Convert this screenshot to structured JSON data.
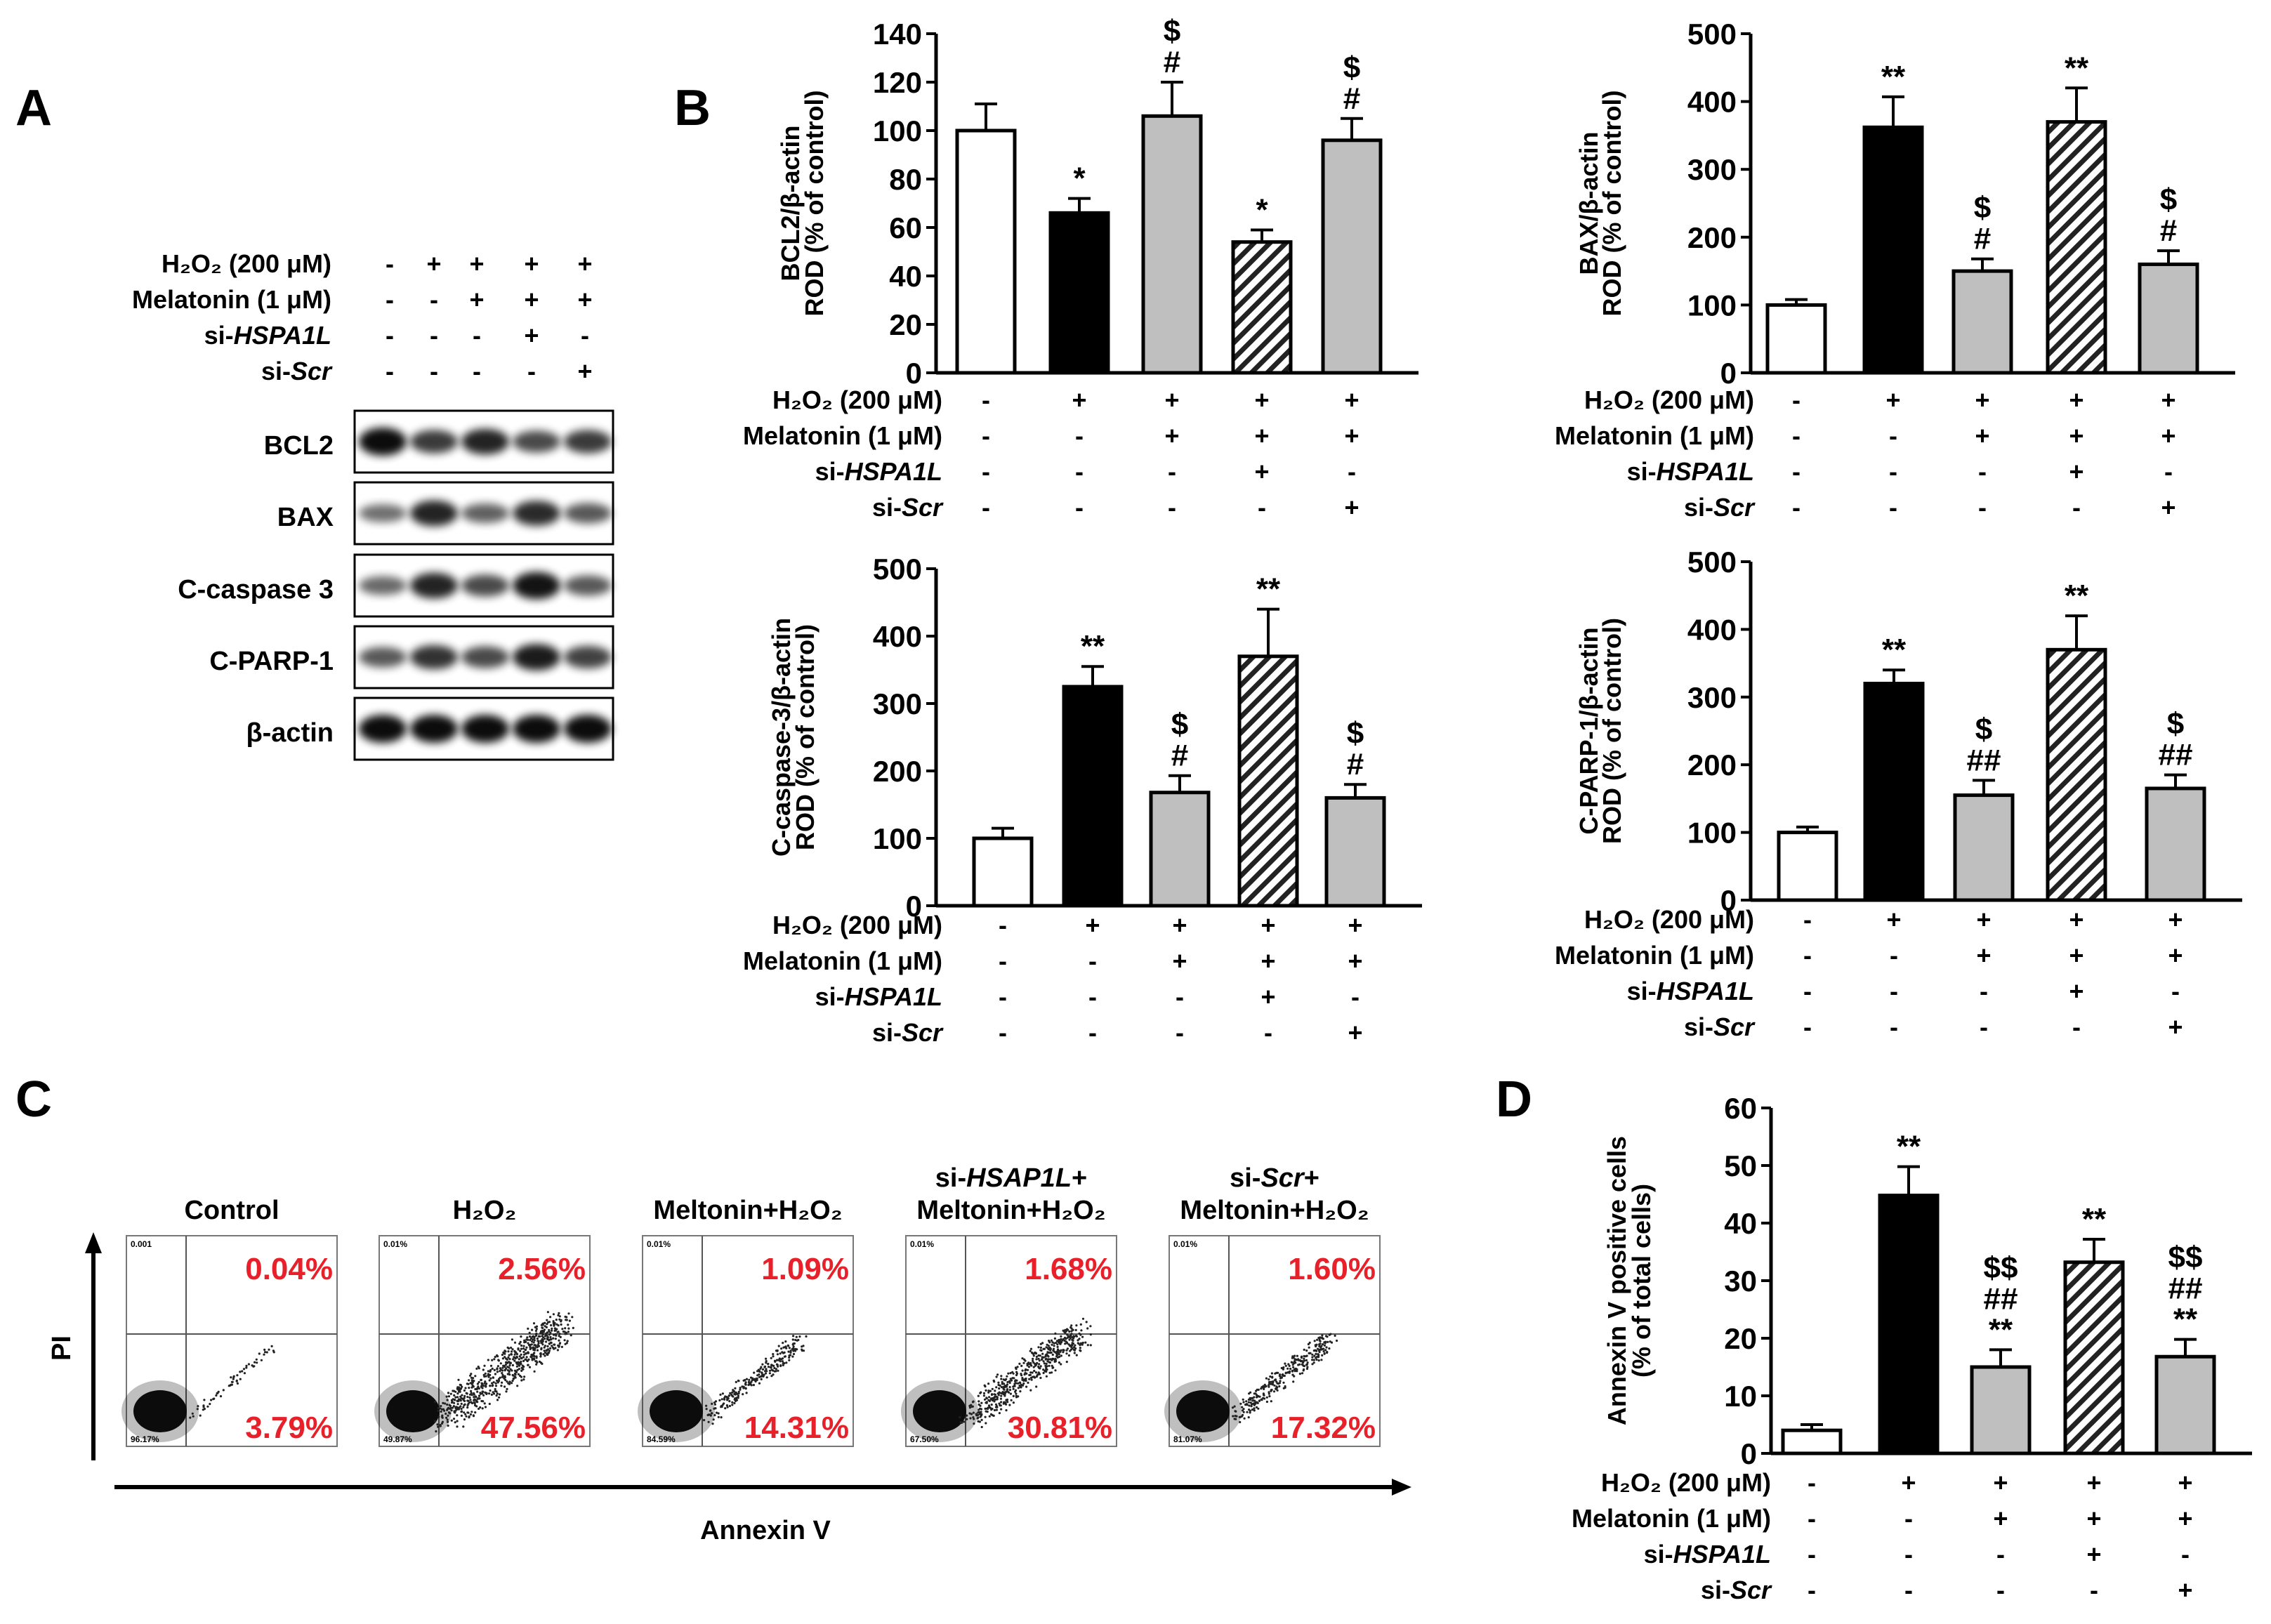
{
  "colors": {
    "black_bar": "#000000",
    "gray_bar": "#bfbfbf",
    "white_bar": "#ffffff",
    "percent_red": "#e8202a"
  },
  "panel_labels": {
    "a": "A",
    "b": "B",
    "c": "C",
    "d": "D"
  },
  "conditions": {
    "rows": [
      {
        "label_main": "H₂O₂ (200 μM)",
        "label_italic": "",
        "marks": [
          "-",
          "+",
          "+",
          "+",
          "+"
        ]
      },
      {
        "label_main": "Melatonin (1 μM)",
        "label_italic": "",
        "marks": [
          "-",
          "-",
          "+",
          "+",
          "+"
        ]
      },
      {
        "label_main": "si-",
        "label_italic": "HSPA1L",
        "marks": [
          "-",
          "-",
          "-",
          "+",
          "-"
        ]
      },
      {
        "label_main": "si-",
        "label_italic": "Scr",
        "marks": [
          "-",
          "-",
          "-",
          "-",
          "+"
        ]
      }
    ]
  },
  "western_blot": {
    "bands": [
      "BCL2",
      "BAX",
      "C-caspase 3",
      "C-PARP-1",
      "β-actin"
    ]
  },
  "chart_data": [
    {
      "id": "bcl2",
      "type": "bar",
      "title": "",
      "xlabel": "",
      "ylabel_lines": [
        "BCL2/β-actin",
        "ROD (% of control)"
      ],
      "ylim": [
        0,
        140
      ],
      "yticks": [
        0,
        20,
        40,
        60,
        80,
        100,
        120,
        140
      ],
      "values": [
        100,
        66,
        106,
        54,
        96
      ],
      "errors": [
        11,
        6,
        14,
        5,
        9
      ],
      "fills": [
        "white",
        "black",
        "gray",
        "hatch",
        "gray"
      ],
      "annotations": [
        [],
        [
          "*"
        ],
        [
          "#",
          "$"
        ],
        [
          "*"
        ],
        [
          "#",
          "$"
        ]
      ]
    },
    {
      "id": "bax",
      "type": "bar",
      "title": "",
      "xlabel": "",
      "ylabel_lines": [
        "BAX/β-actin",
        "ROD (% of control)"
      ],
      "ylim": [
        0,
        500
      ],
      "yticks": [
        0,
        100,
        200,
        300,
        400,
        500
      ],
      "values": [
        100,
        362,
        150,
        370,
        160
      ],
      "errors": [
        8,
        45,
        18,
        50,
        20
      ],
      "fills": [
        "white",
        "black",
        "gray",
        "hatch",
        "gray"
      ],
      "annotations": [
        [],
        [
          "**"
        ],
        [
          "#",
          "$"
        ],
        [
          "**"
        ],
        [
          "#",
          "$"
        ]
      ]
    },
    {
      "id": "ccasp3",
      "type": "bar",
      "title": "",
      "xlabel": "",
      "ylabel_lines": [
        "C-caspase-3/β-actin",
        "ROD (% of control)"
      ],
      "ylim": [
        0,
        500
      ],
      "yticks": [
        0,
        100,
        200,
        300,
        400,
        500
      ],
      "values": [
        100,
        325,
        168,
        370,
        160
      ],
      "errors": [
        15,
        30,
        25,
        70,
        20
      ],
      "fills": [
        "white",
        "black",
        "gray",
        "hatch",
        "gray"
      ],
      "annotations": [
        [],
        [
          "**"
        ],
        [
          "#",
          "$"
        ],
        [
          "**"
        ],
        [
          "#",
          "$"
        ]
      ]
    },
    {
      "id": "cparp1",
      "type": "bar",
      "title": "",
      "xlabel": "",
      "ylabel_lines": [
        "C-PARP-1/β-actin",
        "ROD (% of control)"
      ],
      "ylim": [
        0,
        500
      ],
      "yticks": [
        0,
        100,
        200,
        300,
        400,
        500
      ],
      "values": [
        100,
        320,
        155,
        370,
        165
      ],
      "errors": [
        8,
        20,
        22,
        50,
        20
      ],
      "fills": [
        "white",
        "black",
        "gray",
        "hatch",
        "gray"
      ],
      "annotations": [
        [],
        [
          "**"
        ],
        [
          "##",
          "$"
        ],
        [
          "**"
        ],
        [
          "##",
          "$"
        ]
      ]
    },
    {
      "id": "annexin",
      "type": "bar",
      "title": "",
      "xlabel": "",
      "ylabel_lines": [
        "Annexin V positive cells",
        "(% of total cells)"
      ],
      "ylim": [
        0,
        60
      ],
      "yticks": [
        0,
        10,
        20,
        30,
        40,
        50,
        60
      ],
      "values": [
        4,
        44.8,
        15,
        33.2,
        16.8
      ],
      "errors": [
        1,
        5,
        3,
        4,
        3
      ],
      "fills": [
        "white",
        "black",
        "gray",
        "hatch",
        "gray"
      ],
      "annotations": [
        [],
        [
          "**"
        ],
        [
          "**",
          "##",
          "$$"
        ],
        [
          "**"
        ],
        [
          "**",
          "##",
          "$$"
        ]
      ]
    }
  ],
  "flow": {
    "y_axis": "PI",
    "x_axis": "Annexin V",
    "panels": [
      {
        "title_main": "Control",
        "title_italic": "",
        "title_tail": "",
        "title_l2": "",
        "ur": "0.04%",
        "lr": "3.79%",
        "ul_corner": "0.001",
        "ll_corner": "96.17%"
      },
      {
        "title_main": "H₂O₂",
        "title_italic": "",
        "title_tail": "",
        "title_l2": "",
        "ur": "2.56%",
        "lr": "47.56%",
        "ul_corner": "0.01%",
        "ll_corner": "49.87%"
      },
      {
        "title_main": "Meltonin+H₂O₂",
        "title_italic": "",
        "title_tail": "",
        "title_l2": "",
        "ur": "1.09%",
        "lr": "14.31%",
        "ul_corner": "0.01%",
        "ll_corner": "84.59%"
      },
      {
        "title_main": "si-",
        "title_italic": "HSAP1L",
        "title_tail": "+",
        "title_l2": "Meltonin+H₂O₂",
        "ur": "1.68%",
        "lr": "30.81%",
        "ul_corner": "0.01%",
        "ll_corner": "67.50%"
      },
      {
        "title_main": "si-",
        "title_italic": "Scr",
        "title_tail": "+",
        "title_l2": "Meltonin+H₂O₂",
        "ur": "1.60%",
        "lr": "17.32%",
        "ul_corner": "0.01%",
        "ll_corner": "81.07%"
      }
    ]
  }
}
